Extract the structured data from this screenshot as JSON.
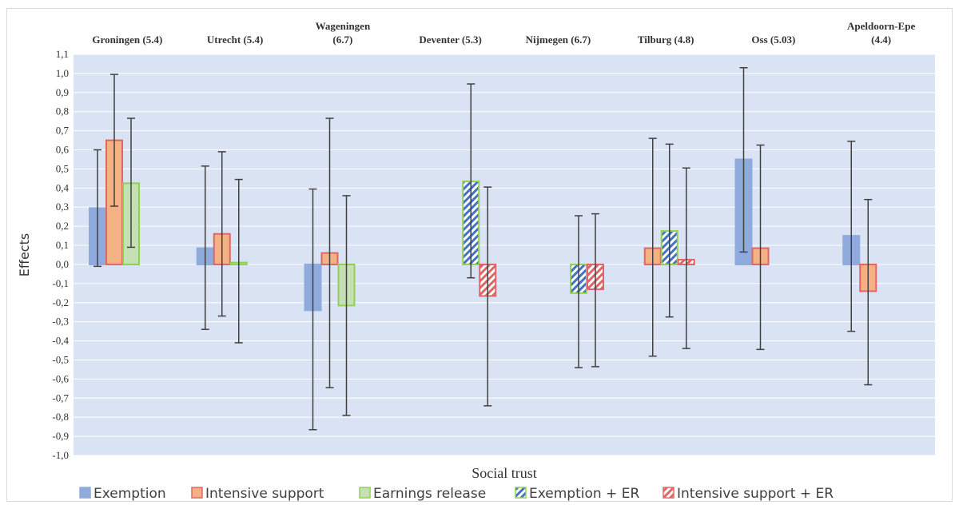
{
  "chart_data": {
    "type": "bar",
    "xlabel": "Social trust",
    "ylabel": "Effects",
    "ylim": [
      -1.0,
      1.1
    ],
    "yticks": [
      "1,1",
      "1,0",
      "0,9",
      "0,8",
      "0,7",
      "0,6",
      "0,5",
      "0,4",
      "0,3",
      "0,2",
      "0,1",
      "0,0",
      "-0,1",
      "-0,2",
      "-0,3",
      "-0,4",
      "-0,5",
      "-0,6",
      "-0,7",
      "-0,8",
      "-0,9",
      "-1,0"
    ],
    "grid": true,
    "plot_background": "#dae3f3",
    "legend_position": "bottom",
    "categories": [
      [
        "Groningen (5.4)"
      ],
      [
        "Utrecht  (5.4)"
      ],
      [
        "Wageningen",
        "(6.7)"
      ],
      [
        "Deventer (5.3)"
      ],
      [
        "Nijmegen (6.7)"
      ],
      [
        "Tilburg (4.8)"
      ],
      [
        "Oss (5.03)"
      ],
      [
        "Apeldoorn-Epe",
        "(4.4)"
      ]
    ],
    "series": [
      {
        "name": "Exemption",
        "color": "#8faadc",
        "stroke": "#8faadc",
        "pattern": "solid",
        "slot": 0,
        "values": [
          0.295,
          0.085,
          -0.24,
          null,
          null,
          null,
          0.55,
          0.15
        ],
        "errors": [
          [
            -0.01,
            0.6
          ],
          [
            -0.34,
            0.515
          ],
          [
            -0.865,
            0.395
          ],
          null,
          null,
          null,
          [
            0.065,
            1.03
          ],
          [
            -0.35,
            0.645
          ]
        ]
      },
      {
        "name": "Intensive support",
        "color": "#f4b183",
        "stroke": "#e06666",
        "pattern": "solid",
        "slot": 1,
        "values": [
          0.65,
          0.16,
          0.06,
          null,
          null,
          0.085,
          0.085,
          -0.14
        ],
        "errors": [
          [
            0.305,
            0.995
          ],
          [
            -0.27,
            0.59
          ],
          [
            -0.645,
            0.765
          ],
          null,
          null,
          [
            -0.48,
            0.66
          ],
          [
            -0.445,
            0.625
          ],
          [
            -0.63,
            0.34
          ]
        ]
      },
      {
        "name": "Earnings release",
        "color": "#c5e0b4",
        "stroke": "#92d050",
        "pattern": "solid",
        "slot": 2,
        "values": [
          0.425,
          0.01,
          -0.215,
          null,
          null,
          null,
          null,
          null
        ],
        "errors": [
          [
            0.09,
            0.765
          ],
          [
            -0.41,
            0.445
          ],
          [
            -0.79,
            0.36
          ],
          null,
          null,
          null,
          null,
          null
        ]
      },
      {
        "name": "Exemption + ER",
        "color": "#4472c4",
        "stroke": "#92d050",
        "pattern": "hatch",
        "slot": 3,
        "values": [
          null,
          null,
          null,
          0.435,
          -0.15,
          null,
          null,
          null
        ],
        "errors": [
          null,
          null,
          null,
          [
            -0.07,
            0.945
          ],
          [
            -0.54,
            0.255
          ],
          null,
          null,
          null
        ]
      },
      {
        "name": "Intensive support + ER",
        "color": "#e06666",
        "stroke": "#e06666",
        "pattern": "hatch",
        "slot": 4,
        "values": [
          null,
          null,
          null,
          -0.165,
          -0.13,
          null,
          null,
          null
        ],
        "errors": [
          null,
          null,
          null,
          [
            -0.74,
            0.405
          ],
          [
            -0.535,
            0.265
          ],
          null,
          null,
          null
        ]
      },
      {
        "name": "Exemption + ER",
        "color": "#4472c4",
        "stroke": "#92d050",
        "pattern": "hatch",
        "slot": 2,
        "in_legend": false,
        "values": [
          null,
          null,
          null,
          null,
          null,
          0.175,
          null,
          null
        ],
        "errors": [
          null,
          null,
          null,
          null,
          null,
          [
            -0.275,
            0.63
          ],
          null,
          null
        ]
      },
      {
        "name": "Intensive support + ER",
        "color": "#e06666",
        "stroke": "#e06666",
        "pattern": "hatch",
        "slot": 3,
        "in_legend": false,
        "values": [
          null,
          null,
          null,
          null,
          null,
          0.025,
          null,
          null
        ],
        "errors": [
          null,
          null,
          null,
          null,
          null,
          [
            -0.44,
            0.505
          ],
          null,
          null
        ]
      }
    ]
  }
}
